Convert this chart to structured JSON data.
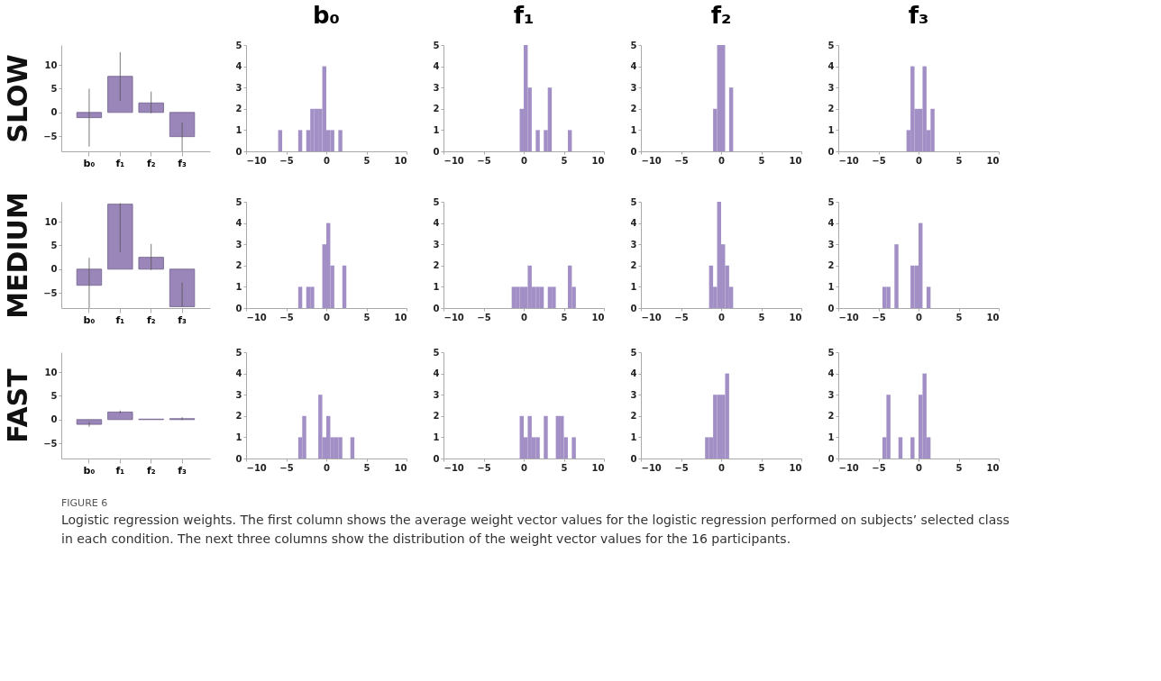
{
  "chart_data": [
    {
      "type": "bar",
      "ylabel": "SLOW",
      "categories": [
        "b₀",
        "f₁",
        "f₂",
        "f₃"
      ],
      "values": [
        -1.1,
        7.6,
        2.0,
        -5.1
      ],
      "errors": [
        [
          -7.2,
          5.0
        ],
        [
          2.4,
          12.7
        ],
        [
          -0.2,
          4.4
        ],
        [
          -8.2,
          -2.1
        ]
      ],
      "color": "#9a86b9",
      "ylim": [
        -8.2,
        14.2
      ],
      "yticks": [
        -5,
        0,
        5,
        10
      ],
      "annotations": [
        "FIGURE 6",
        "Logistic regression weights. The first column shows the average weight vector values for the logistic regression performed on subjects’ selected class in each condition. The next three columns show the distribution of the weight vector values for the 16 participants."
      ]
    },
    {
      "type": "histogram",
      "title": "b₀",
      "bins": [
        -7,
        -6.5,
        -6,
        -5.5,
        -5,
        -4.5,
        -4,
        -3.5,
        -3,
        -2.5,
        -2,
        -1.5,
        -1,
        -0.5,
        0,
        0.5,
        1,
        1.5,
        2,
        2.5,
        3,
        3.5,
        4,
        4.5,
        5,
        5.5,
        6,
        6.5,
        7
      ],
      "values": [
        0,
        0,
        1,
        0,
        0,
        0,
        0,
        1,
        0,
        1,
        2,
        2,
        2,
        4,
        1,
        1,
        0,
        1,
        0,
        0,
        0,
        0,
        0,
        0,
        0,
        0,
        0,
        0
      ],
      "color": "#a28fc6",
      "xlim": [
        -10,
        10
      ],
      "xticks": [
        -10,
        -5,
        0,
        5,
        10
      ],
      "ylim": [
        0,
        5
      ],
      "yticks": [
        0,
        1,
        2,
        3,
        4,
        5
      ]
    },
    {
      "type": "histogram",
      "title": "f₁",
      "bins": [
        -7,
        -6.5,
        -6,
        -5.5,
        -5,
        -4.5,
        -4,
        -3.5,
        -3,
        -2.5,
        -2,
        -1.5,
        -1,
        -0.5,
        0,
        0.5,
        1,
        1.5,
        2,
        2.5,
        3,
        3.5,
        4,
        4.5,
        5,
        5.5,
        6,
        6.5,
        7
      ],
      "values": [
        0,
        0,
        0,
        0,
        0,
        0,
        0,
        0,
        0,
        0,
        0,
        0,
        0,
        2,
        5,
        3,
        0,
        1,
        0,
        1,
        3,
        0,
        0,
        0,
        0,
        1,
        0,
        0
      ],
      "color": "#a28fc6",
      "xlim": [
        -10,
        10
      ],
      "xticks": [
        -10,
        -5,
        0,
        5,
        10
      ],
      "ylim": [
        0,
        5
      ],
      "yticks": [
        0,
        1,
        2,
        3,
        4,
        5
      ]
    },
    {
      "type": "histogram",
      "title": "f₂",
      "bins": [
        -7,
        -6.5,
        -6,
        -5.5,
        -5,
        -4.5,
        -4,
        -3.5,
        -3,
        -2.5,
        -2,
        -1.5,
        -1,
        -0.5,
        0,
        0.5,
        1,
        1.5,
        2,
        2.5,
        3,
        3.5,
        4,
        4.5,
        5,
        5.5,
        6,
        6.5,
        7
      ],
      "values": [
        0,
        0,
        0,
        0,
        0,
        0,
        0,
        0,
        0,
        0,
        0,
        0,
        2,
        5,
        5,
        0,
        3,
        0,
        0,
        0,
        0,
        0,
        0,
        0,
        0,
        0,
        0,
        0
      ],
      "color": "#a28fc6",
      "xlim": [
        -10,
        10
      ],
      "xticks": [
        -10,
        -5,
        0,
        5,
        10
      ],
      "ylim": [
        0,
        5
      ],
      "yticks": [
        0,
        1,
        2,
        3,
        4,
        5
      ]
    },
    {
      "type": "histogram",
      "title": "f₃",
      "bins": [
        -7,
        -6.5,
        -6,
        -5.5,
        -5,
        -4.5,
        -4,
        -3.5,
        -3,
        -2.5,
        -2,
        -1.5,
        -1,
        -0.5,
        0,
        0.5,
        1,
        1.5,
        2,
        2.5,
        3,
        3.5,
        4,
        4.5,
        5,
        5.5,
        6,
        6.5,
        7
      ],
      "values": [
        0,
        0,
        0,
        0,
        0,
        0,
        0,
        0,
        0,
        0,
        0,
        1,
        4,
        2,
        2,
        4,
        1,
        2,
        0,
        0,
        0,
        0,
        0,
        0,
        0,
        0,
        0,
        0
      ],
      "color": "#a28fc6",
      "xlim": [
        -10,
        10
      ],
      "xticks": [
        -10,
        -5,
        0,
        5,
        10
      ],
      "ylim": [
        0,
        5
      ],
      "yticks": [
        0,
        1,
        2,
        3,
        4,
        5
      ]
    },
    {
      "type": "bar",
      "ylabel": "MEDIUM",
      "categories": [
        "b₀",
        "f₁",
        "f₂",
        "f₃"
      ],
      "values": [
        -3.4,
        13.7,
        2.5,
        -7.9
      ],
      "errors": [
        [
          -8.2,
          2.4
        ],
        [
          3.6,
          13.9
        ],
        [
          -0.2,
          5.3
        ],
        [
          -7.9,
          -2.8
        ]
      ],
      "color": "#9a86b9",
      "ylim": [
        -8.2,
        14.2
      ],
      "yticks": [
        -5,
        0,
        5,
        10
      ]
    },
    {
      "type": "histogram",
      "bins": [
        -7,
        -6.5,
        -6,
        -5.5,
        -5,
        -4.5,
        -4,
        -3.5,
        -3,
        -2.5,
        -2,
        -1.5,
        -1,
        -0.5,
        0,
        0.5,
        1,
        1.5,
        2,
        2.5,
        3,
        3.5,
        4,
        4.5,
        5,
        5.5,
        6,
        6.5,
        7
      ],
      "values": [
        0,
        0,
        0,
        0,
        0,
        0,
        0,
        1,
        0,
        1,
        1,
        0,
        0,
        3,
        4,
        2,
        0,
        0,
        2,
        0,
        0,
        0,
        0,
        0,
        0,
        0,
        0,
        0
      ],
      "color": "#a28fc6",
      "xlim": [
        -10,
        10
      ],
      "xticks": [
        -10,
        -5,
        0,
        5,
        10
      ],
      "ylim": [
        0,
        5
      ],
      "yticks": [
        0,
        1,
        2,
        3,
        4,
        5
      ]
    },
    {
      "type": "histogram",
      "bins": [
        -7,
        -6.5,
        -6,
        -5.5,
        -5,
        -4.5,
        -4,
        -3.5,
        -3,
        -2.5,
        -2,
        -1.5,
        -1,
        -0.5,
        0,
        0.5,
        1,
        1.5,
        2,
        2.5,
        3,
        3.5,
        4,
        4.5,
        5,
        5.5,
        6,
        6.5,
        7
      ],
      "values": [
        0,
        0,
        0,
        0,
        0,
        0,
        0,
        0,
        0,
        0,
        0,
        1,
        1,
        1,
        1,
        2,
        1,
        1,
        1,
        0,
        1,
        1,
        0,
        0,
        0,
        2,
        1,
        0
      ],
      "color": "#a28fc6",
      "xlim": [
        -10,
        10
      ],
      "xticks": [
        -10,
        -5,
        0,
        5,
        10
      ],
      "ylim": [
        0,
        5
      ],
      "yticks": [
        0,
        1,
        2,
        3,
        4,
        5
      ]
    },
    {
      "type": "histogram",
      "bins": [
        -7,
        -6.5,
        -6,
        -5.5,
        -5,
        -4.5,
        -4,
        -3.5,
        -3,
        -2.5,
        -2,
        -1.5,
        -1,
        -0.5,
        0,
        0.5,
        1,
        1.5,
        2,
        2.5,
        3,
        3.5,
        4,
        4.5,
        5,
        5.5,
        6,
        6.5,
        7
      ],
      "values": [
        0,
        0,
        0,
        0,
        0,
        0,
        0,
        0,
        0,
        0,
        0,
        2,
        1,
        5,
        3,
        2,
        1,
        0,
        0,
        0,
        0,
        0,
        0,
        0,
        0,
        0,
        0,
        0
      ],
      "color": "#a28fc6",
      "xlim": [
        -10,
        10
      ],
      "xticks": [
        -10,
        -5,
        0,
        5,
        10
      ],
      "ylim": [
        0,
        5
      ],
      "yticks": [
        0,
        1,
        2,
        3,
        4,
        5
      ]
    },
    {
      "type": "histogram",
      "bins": [
        -7,
        -6.5,
        -6,
        -5.5,
        -5,
        -4.5,
        -4,
        -3.5,
        -3,
        -2.5,
        -2,
        -1.5,
        -1,
        -0.5,
        0,
        0.5,
        1,
        1.5,
        2,
        2.5,
        3,
        3.5,
        4,
        4.5,
        5,
        5.5,
        6,
        6.5,
        7
      ],
      "values": [
        0,
        0,
        0,
        0,
        0,
        1,
        1,
        0,
        3,
        0,
        0,
        0,
        2,
        2,
        4,
        0,
        1,
        0,
        0,
        0,
        0,
        0,
        0,
        0,
        0,
        0,
        0,
        0
      ],
      "color": "#a28fc6",
      "xlim": [
        -10,
        10
      ],
      "xticks": [
        -10,
        -5,
        0,
        5,
        10
      ],
      "ylim": [
        0,
        5
      ],
      "yticks": [
        0,
        1,
        2,
        3,
        4,
        5
      ]
    },
    {
      "type": "bar",
      "ylabel": "FAST",
      "categories": [
        "b₀",
        "f₁",
        "f₂",
        "f₃"
      ],
      "values": [
        -1.0,
        1.6,
        0.1,
        0.2
      ],
      "errors": [
        [
          -1.5,
          -0.5
        ],
        [
          1.3,
          1.9
        ],
        null,
        [
          -0.1,
          0.5
        ]
      ],
      "color": "#9a86b9",
      "ylim": [
        -8.2,
        14.2
      ],
      "yticks": [
        -5,
        0,
        5,
        10
      ]
    },
    {
      "type": "histogram",
      "bins": [
        -7,
        -6.5,
        -6,
        -5.5,
        -5,
        -4.5,
        -4,
        -3.5,
        -3,
        -2.5,
        -2,
        -1.5,
        -1,
        -0.5,
        0,
        0.5,
        1,
        1.5,
        2,
        2.5,
        3,
        3.5,
        4,
        4.5,
        5,
        5.5,
        6,
        6.5,
        7
      ],
      "values": [
        0,
        0,
        0,
        0,
        0,
        0,
        0,
        1,
        2,
        0,
        0,
        0,
        3,
        1,
        2,
        1,
        1,
        1,
        0,
        0,
        1,
        0,
        0,
        0,
        0,
        0,
        0,
        0
      ],
      "color": "#a28fc6",
      "xlim": [
        -10,
        10
      ],
      "xticks": [
        -10,
        -5,
        0,
        5,
        10
      ],
      "ylim": [
        0,
        5
      ],
      "yticks": [
        0,
        1,
        2,
        3,
        4,
        5
      ]
    },
    {
      "type": "histogram",
      "bins": [
        -7,
        -6.5,
        -6,
        -5.5,
        -5,
        -4.5,
        -4,
        -3.5,
        -3,
        -2.5,
        -2,
        -1.5,
        -1,
        -0.5,
        0,
        0.5,
        1,
        1.5,
        2,
        2.5,
        3,
        3.5,
        4,
        4.5,
        5,
        5.5,
        6,
        6.5,
        7
      ],
      "values": [
        0,
        0,
        0,
        0,
        0,
        0,
        0,
        0,
        0,
        0,
        0,
        0,
        0,
        2,
        1,
        2,
        1,
        1,
        0,
        2,
        0,
        0,
        2,
        2,
        1,
        0,
        1,
        0
      ],
      "color": "#a28fc6",
      "xlim": [
        -10,
        10
      ],
      "xticks": [
        -10,
        -5,
        0,
        5,
        10
      ],
      "ylim": [
        0,
        5
      ],
      "yticks": [
        0,
        1,
        2,
        3,
        4,
        5
      ]
    },
    {
      "type": "histogram",
      "bins": [
        -7,
        -6.5,
        -6,
        -5.5,
        -5,
        -4.5,
        -4,
        -3.5,
        -3,
        -2.5,
        -2,
        -1.5,
        -1,
        -0.5,
        0,
        0.5,
        1,
        1.5,
        2,
        2.5,
        3,
        3.5,
        4,
        4.5,
        5,
        5.5,
        6,
        6.5,
        7
      ],
      "values": [
        0,
        0,
        0,
        0,
        0,
        0,
        0,
        0,
        0,
        0,
        1,
        1,
        3,
        3,
        3,
        4,
        0,
        0,
        0,
        0,
        0,
        0,
        0,
        0,
        0,
        0,
        0,
        0
      ],
      "color": "#a28fc6",
      "xlim": [
        -10,
        10
      ],
      "xticks": [
        -10,
        -5,
        0,
        5,
        10
      ],
      "ylim": [
        0,
        5
      ],
      "yticks": [
        0,
        1,
        2,
        3,
        4,
        5
      ]
    },
    {
      "type": "histogram",
      "bins": [
        -7,
        -6.5,
        -6,
        -5.5,
        -5,
        -4.5,
        -4,
        -3.5,
        -3,
        -2.5,
        -2,
        -1.5,
        -1,
        -0.5,
        0,
        0.5,
        1,
        1.5,
        2,
        2.5,
        3,
        3.5,
        4,
        4.5,
        5,
        5.5,
        6,
        6.5,
        7
      ],
      "values": [
        0,
        0,
        0,
        0,
        0,
        1,
        3,
        0,
        0,
        1,
        0,
        0,
        1,
        0,
        3,
        4,
        1,
        0,
        0,
        0,
        0,
        0,
        0,
        0,
        0,
        0,
        0,
        0
      ],
      "color": "#a28fc6",
      "xlim": [
        -10,
        10
      ],
      "xticks": [
        -10,
        -5,
        0,
        5,
        10
      ],
      "ylim": [
        0,
        5
      ],
      "yticks": [
        0,
        1,
        2,
        3,
        4,
        5
      ]
    }
  ]
}
